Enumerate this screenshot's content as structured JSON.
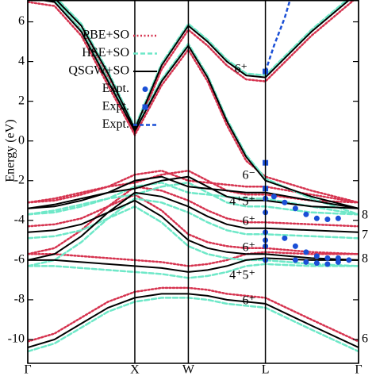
{
  "chart_data": {
    "type": "line",
    "ylabel": "Energy (eV)",
    "xlim": [
      0,
      3.09
    ],
    "ylim": [
      -11.2,
      7.1
    ],
    "xticks": [
      {
        "value": 0,
        "label": "Γ"
      },
      {
        "value": 1,
        "label": "X"
      },
      {
        "value": 1.5,
        "label": "W"
      },
      {
        "value": 2.22,
        "label": "L"
      },
      {
        "value": 3.09,
        "label": "Γ"
      }
    ],
    "yticks": [
      -10,
      -8,
      -6,
      -4,
      -2,
      0,
      2,
      4,
      6
    ],
    "grid": false,
    "legend": "upper left",
    "x": [
      0,
      0.25,
      0.5,
      0.75,
      1,
      1.25,
      1.5,
      1.68,
      1.86,
      2.04,
      2.22,
      2.65,
      3.09
    ],
    "series": [
      {
        "name": "PBE+SO",
        "color": "#d6334f",
        "style": "dotted",
        "bands": [
          [
            -10.1,
            -9.7,
            -8.9,
            -8.1,
            -7.6,
            -7.4,
            -7.4,
            -7.5,
            -7.7,
            -7.8,
            -7.9,
            -9.0,
            -10.1
          ],
          [
            -5.7,
            -5.7,
            -5.8,
            -5.9,
            -6.0,
            -6.1,
            -6.3,
            -6.2,
            -6.0,
            -5.7,
            -5.6,
            -5.7,
            -5.7
          ],
          [
            -5.7,
            -5.4,
            -4.5,
            -3.3,
            -2.7,
            -3.5,
            -4.7,
            -5.1,
            -5.3,
            -5.4,
            -5.4,
            -5.6,
            -5.7
          ],
          [
            -4.3,
            -4.2,
            -3.9,
            -3.3,
            -2.3,
            -2.5,
            -3.0,
            -3.5,
            -3.9,
            -4.1,
            -4.1,
            -4.2,
            -4.3
          ],
          [
            -3.1,
            -2.9,
            -2.6,
            -2.3,
            -2.1,
            -1.7,
            -1.5,
            -2.0,
            -2.5,
            -2.7,
            -2.7,
            -3.0,
            -3.1
          ],
          [
            -3.1,
            -3.0,
            -2.7,
            -2.3,
            -1.7,
            -1.5,
            -2.0,
            -2.1,
            -2.2,
            -2.3,
            -2.3,
            -2.7,
            -3.1
          ],
          [
            7.0,
            6.8,
            5.3,
            2.8,
            0.3,
            2.8,
            4.6,
            3.0,
            0.8,
            -1.0,
            -1.8,
            -2.5,
            -3.1
          ],
          [
            7.3,
            7.0,
            5.6,
            3.2,
            0.4,
            3.6,
            5.6,
            4.8,
            3.8,
            3.1,
            3.0,
            5.3,
            7.3
          ]
        ]
      },
      {
        "name": "HSE+SO",
        "color": "#6ee8c8",
        "style": "dashed",
        "bands": [
          [
            -10.6,
            -10.2,
            -9.4,
            -8.6,
            -8.1,
            -7.9,
            -7.9,
            -8.0,
            -8.2,
            -8.3,
            -8.4,
            -9.5,
            -10.6
          ],
          [
            -6.3,
            -6.3,
            -6.4,
            -6.5,
            -6.6,
            -6.7,
            -6.9,
            -6.8,
            -6.6,
            -6.3,
            -6.2,
            -6.3,
            -6.3
          ],
          [
            -6.3,
            -6.0,
            -5.1,
            -3.9,
            -3.3,
            -4.1,
            -5.3,
            -5.7,
            -5.9,
            -6.0,
            -6.0,
            -6.2,
            -6.3
          ],
          [
            -4.9,
            -4.8,
            -4.5,
            -3.9,
            -2.9,
            -3.1,
            -3.6,
            -4.1,
            -4.5,
            -4.7,
            -4.7,
            -4.8,
            -4.9
          ],
          [
            -3.7,
            -3.5,
            -3.2,
            -2.9,
            -2.7,
            -2.3,
            -2.1,
            -2.6,
            -3.1,
            -3.3,
            -3.3,
            -3.6,
            -3.7
          ],
          [
            -3.7,
            -3.6,
            -3.3,
            -2.9,
            -2.3,
            -2.1,
            -2.6,
            -2.7,
            -2.8,
            -2.9,
            -2.9,
            -3.3,
            -3.7
          ],
          [
            7.3,
            7.1,
            5.6,
            3.1,
            0.6,
            3.1,
            4.9,
            3.3,
            1.1,
            -0.7,
            -1.9,
            -2.9,
            -3.7
          ],
          [
            7.6,
            7.3,
            5.9,
            3.5,
            0.7,
            3.9,
            5.9,
            5.1,
            4.1,
            3.4,
            3.3,
            5.6,
            7.6
          ]
        ]
      },
      {
        "name": "QSGW+SO",
        "color": "#000000",
        "style": "solid",
        "bands": [
          [
            -10.4,
            -10.0,
            -9.2,
            -8.4,
            -7.9,
            -7.7,
            -7.7,
            -7.8,
            -8.0,
            -8.1,
            -8.2,
            -9.3,
            -10.4
          ],
          [
            -6.0,
            -6.0,
            -6.1,
            -6.2,
            -6.3,
            -6.4,
            -6.6,
            -6.5,
            -6.3,
            -6.0,
            -5.9,
            -6.0,
            -6.0
          ],
          [
            -6.0,
            -5.7,
            -4.8,
            -3.6,
            -3.0,
            -3.8,
            -5.0,
            -5.4,
            -5.6,
            -5.7,
            -5.7,
            -5.9,
            -6.0
          ],
          [
            -4.6,
            -4.5,
            -4.2,
            -3.6,
            -2.6,
            -2.8,
            -3.3,
            -3.8,
            -4.2,
            -4.4,
            -4.4,
            -4.5,
            -4.6
          ],
          [
            -3.4,
            -3.2,
            -2.9,
            -2.6,
            -2.4,
            -2.0,
            -1.8,
            -2.3,
            -2.8,
            -3.0,
            -3.0,
            -3.3,
            -3.4
          ],
          [
            -3.4,
            -3.3,
            -3.0,
            -2.6,
            -2.0,
            -1.8,
            -2.3,
            -2.4,
            -2.5,
            -2.6,
            -2.6,
            -3.0,
            -3.4
          ],
          [
            7.2,
            7.0,
            5.5,
            3.0,
            0.5,
            3.0,
            4.8,
            3.2,
            1.0,
            -0.8,
            -2.0,
            -2.8,
            -3.4
          ],
          [
            7.5,
            7.2,
            5.8,
            3.4,
            0.6,
            3.8,
            5.8,
            5.0,
            4.0,
            3.3,
            3.2,
            5.5,
            7.5
          ]
        ]
      }
    ],
    "expt": [
      {
        "name": "Expt.",
        "color": "#1a4fd6",
        "marker": "circle",
        "x": [
          2.22,
          2.22,
          2.22,
          2.22,
          2.22,
          2.22,
          2.3,
          2.4,
          2.5,
          2.6,
          2.7,
          2.8,
          2.9,
          2.4,
          2.5,
          2.6,
          2.7,
          2.8,
          2.9,
          2.5,
          2.6,
          2.7,
          2.8,
          2.9,
          3.0
        ],
        "values": [
          -2.9,
          -3.6,
          -4.6,
          -5.0,
          -5.3,
          -6.0,
          -2.8,
          -3.1,
          -3.4,
          -3.7,
          -3.9,
          -3.95,
          -3.9,
          -4.9,
          -5.3,
          -5.6,
          -5.8,
          -5.9,
          -5.9,
          -6.0,
          -6.1,
          -6.15,
          -6.2,
          -6.1,
          -6.0
        ]
      },
      {
        "name": "Expt.",
        "color": "#1a4fd6",
        "marker": "square",
        "x": [
          2.22,
          2.22,
          2.22
        ],
        "values": [
          3.5,
          -1.1,
          -2.4
        ]
      },
      {
        "name": "Expt.",
        "color": "#1a4fd6",
        "marker": "dashed-line",
        "x": [
          2.22,
          2.3,
          2.4,
          2.45
        ],
        "values": [
          3.5,
          4.8,
          6.2,
          7.1
        ]
      }
    ],
    "annotations": [
      "6⁺",
      "6⁻",
      "4⁺5⁺",
      "6⁺",
      "6⁺",
      "4⁺5⁺",
      "6⁺",
      "8",
      "7",
      "8",
      "6"
    ]
  }
}
